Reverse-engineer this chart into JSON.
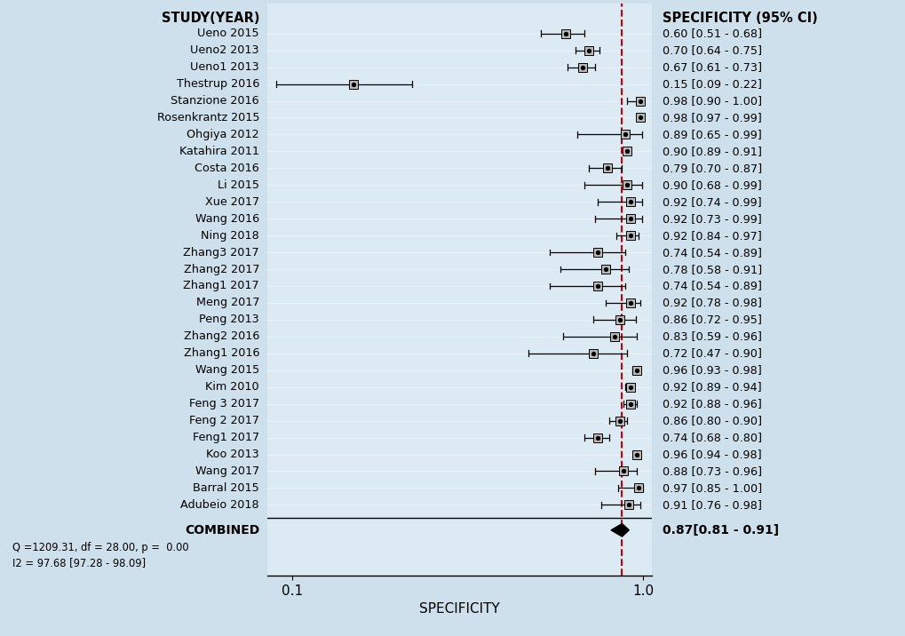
{
  "studies": [
    {
      "label": "Ueno 2015",
      "spec": 0.6,
      "ci_low": 0.51,
      "ci_high": 0.68,
      "ci_str": "0.60 [0.51 - 0.68]"
    },
    {
      "label": "Ueno2 2013",
      "spec": 0.7,
      "ci_low": 0.64,
      "ci_high": 0.75,
      "ci_str": "0.70 [0.64 - 0.75]"
    },
    {
      "label": "Ueno1 2013",
      "spec": 0.67,
      "ci_low": 0.61,
      "ci_high": 0.73,
      "ci_str": "0.67 [0.61 - 0.73]"
    },
    {
      "label": "Thestrup 2016",
      "spec": 0.15,
      "ci_low": 0.09,
      "ci_high": 0.22,
      "ci_str": "0.15 [0.09 - 0.22]"
    },
    {
      "label": "Stanzione 2016",
      "spec": 0.98,
      "ci_low": 0.9,
      "ci_high": 1.0,
      "ci_str": "0.98 [0.90 - 1.00]"
    },
    {
      "label": "Rosenkrantz 2015",
      "spec": 0.98,
      "ci_low": 0.97,
      "ci_high": 0.99,
      "ci_str": "0.98 [0.97 - 0.99]"
    },
    {
      "label": "Ohgiya 2012",
      "spec": 0.89,
      "ci_low": 0.65,
      "ci_high": 0.99,
      "ci_str": "0.89 [0.65 - 0.99]"
    },
    {
      "label": "Katahira 2011",
      "spec": 0.9,
      "ci_low": 0.89,
      "ci_high": 0.91,
      "ci_str": "0.90 [0.89 - 0.91]"
    },
    {
      "label": "Costa 2016",
      "spec": 0.79,
      "ci_low": 0.7,
      "ci_high": 0.87,
      "ci_str": "0.79 [0.70 - 0.87]"
    },
    {
      "label": "Li 2015",
      "spec": 0.9,
      "ci_low": 0.68,
      "ci_high": 0.99,
      "ci_str": "0.90 [0.68 - 0.99]"
    },
    {
      "label": "Xue 2017",
      "spec": 0.92,
      "ci_low": 0.74,
      "ci_high": 0.99,
      "ci_str": "0.92 [0.74 - 0.99]"
    },
    {
      "label": "Wang 2016",
      "spec": 0.92,
      "ci_low": 0.73,
      "ci_high": 0.99,
      "ci_str": "0.92 [0.73 - 0.99]"
    },
    {
      "label": "Ning 2018",
      "spec": 0.92,
      "ci_low": 0.84,
      "ci_high": 0.97,
      "ci_str": "0.92 [0.84 - 0.97]"
    },
    {
      "label": "Zhang3 2017",
      "spec": 0.74,
      "ci_low": 0.54,
      "ci_high": 0.89,
      "ci_str": "0.74 [0.54 - 0.89]"
    },
    {
      "label": "Zhang2 2017",
      "spec": 0.78,
      "ci_low": 0.58,
      "ci_high": 0.91,
      "ci_str": "0.78 [0.58 - 0.91]"
    },
    {
      "label": "Zhang1 2017",
      "spec": 0.74,
      "ci_low": 0.54,
      "ci_high": 0.89,
      "ci_str": "0.74 [0.54 - 0.89]"
    },
    {
      "label": "Meng 2017",
      "spec": 0.92,
      "ci_low": 0.78,
      "ci_high": 0.98,
      "ci_str": "0.92 [0.78 - 0.98]"
    },
    {
      "label": "Peng 2013",
      "spec": 0.86,
      "ci_low": 0.72,
      "ci_high": 0.95,
      "ci_str": "0.86 [0.72 - 0.95]"
    },
    {
      "label": "Zhang2 2016",
      "spec": 0.83,
      "ci_low": 0.59,
      "ci_high": 0.96,
      "ci_str": "0.83 [0.59 - 0.96]"
    },
    {
      "label": "Zhang1 2016",
      "spec": 0.72,
      "ci_low": 0.47,
      "ci_high": 0.9,
      "ci_str": "0.72 [0.47 - 0.90]"
    },
    {
      "label": "Wang 2015",
      "spec": 0.96,
      "ci_low": 0.93,
      "ci_high": 0.98,
      "ci_str": "0.96 [0.93 - 0.98]"
    },
    {
      "label": "Kim 2010",
      "spec": 0.92,
      "ci_low": 0.89,
      "ci_high": 0.94,
      "ci_str": "0.92 [0.89 - 0.94]"
    },
    {
      "label": "Feng 3 2017",
      "spec": 0.92,
      "ci_low": 0.88,
      "ci_high": 0.96,
      "ci_str": "0.92 [0.88 - 0.96]"
    },
    {
      "label": "Feng 2 2017",
      "spec": 0.86,
      "ci_low": 0.8,
      "ci_high": 0.9,
      "ci_str": "0.86 [0.80 - 0.90]"
    },
    {
      "label": "Feng1 2017",
      "spec": 0.74,
      "ci_low": 0.68,
      "ci_high": 0.8,
      "ci_str": "0.74 [0.68 - 0.80]"
    },
    {
      "label": "Koo 2013",
      "spec": 0.96,
      "ci_low": 0.94,
      "ci_high": 0.98,
      "ci_str": "0.96 [0.94 - 0.98]"
    },
    {
      "label": "Wang 2017",
      "spec": 0.88,
      "ci_low": 0.73,
      "ci_high": 0.96,
      "ci_str": "0.88 [0.73 - 0.96]"
    },
    {
      "label": "Barral 2015",
      "spec": 0.97,
      "ci_low": 0.85,
      "ci_high": 1.0,
      "ci_str": "0.97 [0.85 - 1.00]"
    },
    {
      "label": "Adubeio 2018",
      "spec": 0.91,
      "ci_low": 0.76,
      "ci_high": 0.98,
      "ci_str": "0.91 [0.76 - 0.98]"
    }
  ],
  "combined": {
    "spec": 0.87,
    "ci_low": 0.81,
    "ci_high": 0.91,
    "ci_str": "0.87[0.81 - 0.91]"
  },
  "combined_label": "COMBINED",
  "stats_line1": "Q =1209.31, df = 28.00, p =  0.00",
  "stats_line2": "I2 = 97.68 [97.28 - 98.09]",
  "dashed_line_x": 0.87,
  "x_label": "SPECIFICITY",
  "header_left": "STUDY(YEAR)",
  "header_right": "SPECIFICITY (95% CI)",
  "bg_color": "#cfe0ed",
  "plot_bg_color": "#dceaf4",
  "marker_face": "#b8b8b8",
  "marker_edge": "#000000"
}
